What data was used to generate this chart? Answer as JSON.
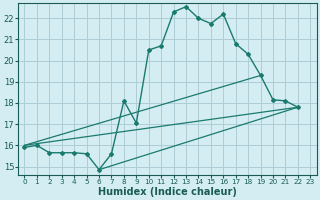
{
  "xlabel": "Humidex (Indice chaleur)",
  "bg_color": "#d4edf2",
  "grid_color": "#aecdd6",
  "line_color": "#1a7a6e",
  "xlim": [
    -0.5,
    23.5
  ],
  "ylim": [
    14.6,
    22.7
  ],
  "yticks": [
    15,
    16,
    17,
    18,
    19,
    20,
    21,
    22
  ],
  "xticks": [
    0,
    1,
    2,
    3,
    4,
    5,
    6,
    7,
    8,
    9,
    10,
    11,
    12,
    13,
    14,
    15,
    16,
    17,
    18,
    19,
    20,
    21,
    22,
    23
  ],
  "main_x": [
    0,
    1,
    2,
    3,
    4,
    5,
    6,
    7,
    8,
    9,
    10,
    11,
    12,
    13,
    14,
    15,
    16,
    17,
    18,
    19,
    20,
    21,
    22
  ],
  "main_y": [
    15.9,
    16.0,
    15.65,
    15.65,
    15.65,
    15.6,
    14.85,
    15.6,
    18.1,
    17.05,
    20.5,
    20.7,
    22.3,
    22.55,
    22.0,
    21.75,
    22.2,
    20.8,
    20.3,
    19.3,
    18.15,
    18.1,
    17.8
  ],
  "line1_x": [
    0,
    22
  ],
  "line1_y": [
    16.0,
    17.8
  ],
  "line2_x": [
    0,
    19
  ],
  "line2_y": [
    16.0,
    19.3
  ],
  "line3_x": [
    6,
    22
  ],
  "line3_y": [
    14.85,
    17.8
  ]
}
